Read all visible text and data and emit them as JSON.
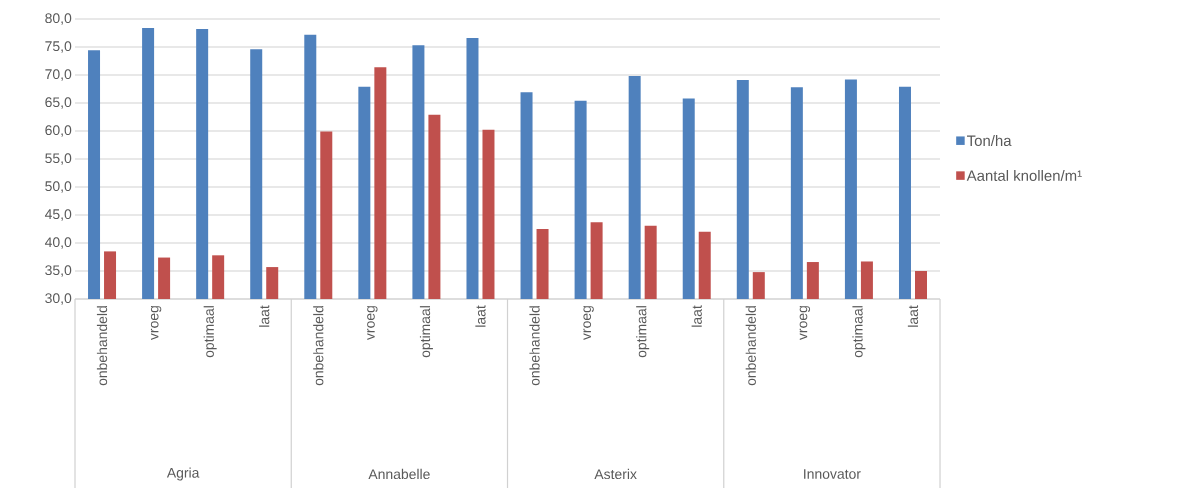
{
  "chart_data": {
    "type": "bar",
    "categories": [
      "onbehandeld",
      "vroeg",
      "optimaal",
      "laat",
      "onbehandeld",
      "vroeg",
      "optimaal",
      "laat",
      "onbehandeld",
      "vroeg",
      "optimaal",
      "laat",
      "onbehandeld",
      "vroeg",
      "optimaal",
      "laat"
    ],
    "series": [
      {
        "name": "Ton/ha",
        "color": "#4f81bd",
        "values": [
          74.4,
          78.4,
          78.2,
          74.6,
          77.2,
          67.9,
          75.3,
          76.6,
          66.9,
          65.4,
          69.8,
          65.8,
          69.1,
          67.8,
          69.2,
          67.9
        ]
      },
      {
        "name": "Aantal knollen/m¹",
        "color": "#c0504d",
        "values": [
          38.5,
          37.4,
          37.8,
          35.7,
          59.9,
          71.4,
          62.9,
          60.2,
          42.5,
          43.7,
          43.1,
          42.0,
          34.8,
          36.6,
          36.7,
          35.0
        ]
      }
    ],
    "annotations": [
      "Agria",
      "Annabelle",
      "Asterix",
      "Innovator"
    ],
    "ylim": [
      30,
      80
    ],
    "yticks": [
      {
        "value": 30,
        "label": "30,0"
      },
      {
        "value": 35,
        "label": "35,0"
      },
      {
        "value": 40,
        "label": "40,0"
      },
      {
        "value": 45,
        "label": "45,0"
      },
      {
        "value": 50,
        "label": "50,0"
      },
      {
        "value": 55,
        "label": "55,0"
      },
      {
        "value": 60,
        "label": "60,0"
      },
      {
        "value": 65,
        "label": "65,0"
      },
      {
        "value": 70,
        "label": "70,0"
      },
      {
        "value": 75,
        "label": "75,0"
      },
      {
        "value": 80,
        "label": "80,0"
      }
    ],
    "grid": "y",
    "legend": "right"
  }
}
